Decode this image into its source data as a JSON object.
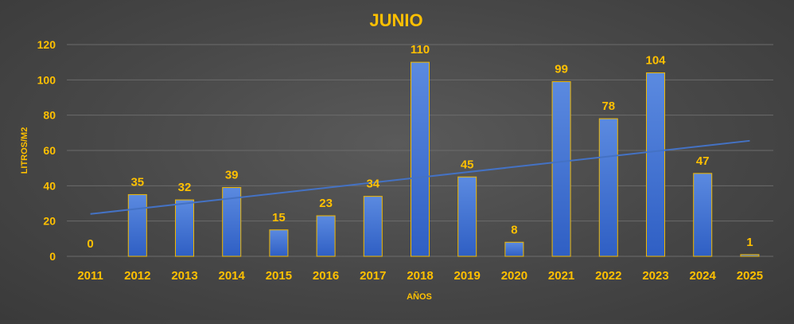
{
  "chart_data": {
    "type": "bar",
    "title": "JUNIO",
    "xlabel": "AÑOS",
    "ylabel": "LITROS/M2",
    "categories": [
      "2011",
      "2012",
      "2013",
      "2014",
      "2015",
      "2016",
      "2017",
      "2018",
      "2019",
      "2020",
      "2021",
      "2022",
      "2023",
      "2024",
      "2025"
    ],
    "values": [
      0,
      35,
      32,
      39,
      15,
      23,
      34,
      110,
      45,
      8,
      99,
      78,
      104,
      47,
      1
    ],
    "ylim": [
      0,
      120
    ],
    "yticks": [
      0,
      20,
      40,
      60,
      80,
      100,
      120
    ],
    "grid": true,
    "legend": "none",
    "trendline": {
      "type": "linear",
      "start": 24,
      "end": 65.5
    },
    "colors": {
      "bar_top": "#5b8ae0",
      "bar_bottom": "#2f5fc4",
      "bar_border": "#f0b800",
      "label": "#ffc000",
      "trendline": "#4472c4",
      "grid": "#6b6b6b"
    }
  }
}
